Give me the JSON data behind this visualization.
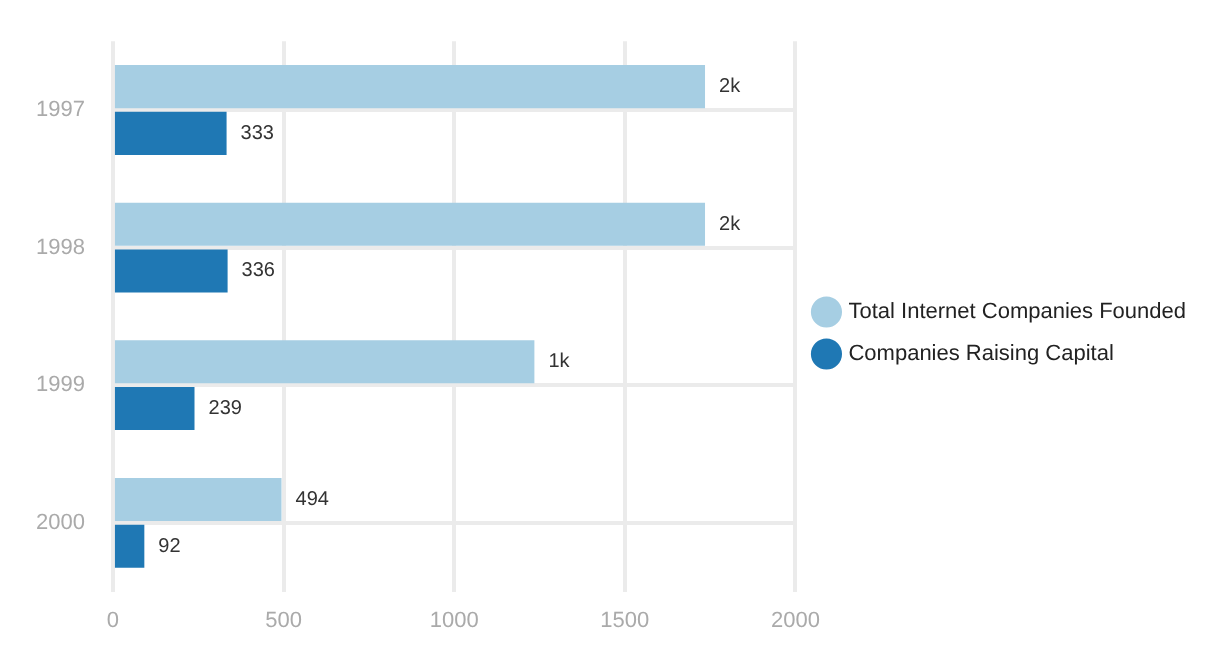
{
  "chart_data": {
    "type": "bar",
    "orientation": "horizontal",
    "categories": [
      "1997",
      "1998",
      "1999",
      "2000"
    ],
    "series": [
      {
        "name": "Total Internet Companies Founded",
        "color": "#a6cee3",
        "values": [
          1735,
          1735,
          1235,
          494
        ],
        "value_labels": [
          "2k",
          "2k",
          "1k",
          "494"
        ]
      },
      {
        "name": "Companies Raising Capital",
        "color": "#1f78b4",
        "values": [
          333,
          336,
          239,
          92
        ],
        "value_labels": [
          "333",
          "336",
          "239",
          "92"
        ]
      }
    ],
    "xlim": [
      0,
      2000
    ],
    "xticks": [
      0,
      500,
      1000,
      1500,
      2000
    ],
    "grid": true,
    "legend": "right",
    "marker": "circle"
  }
}
